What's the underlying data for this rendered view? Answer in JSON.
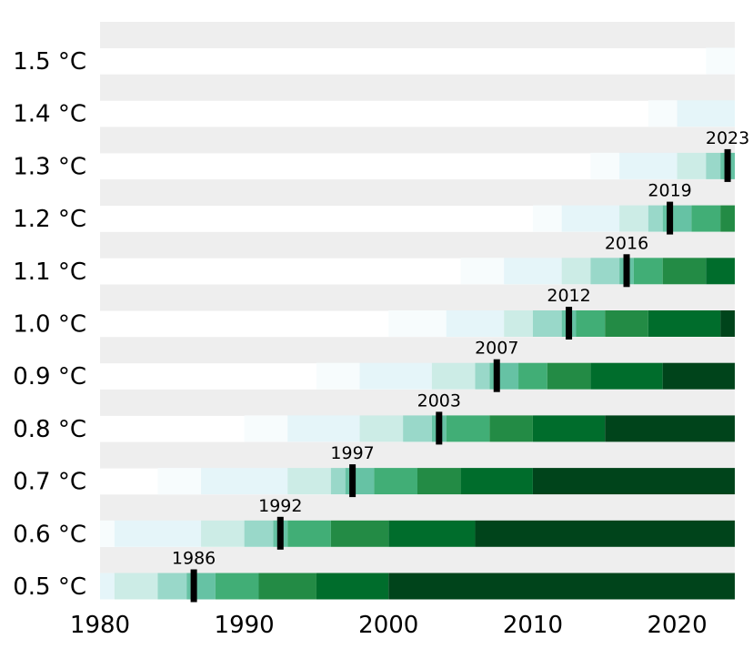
{
  "chart_data": {
    "type": "heatmap",
    "title": "",
    "xlabel": "",
    "ylabel": "",
    "xlim": [
      1980,
      2024
    ],
    "x_ticks": [
      1980,
      1990,
      2000,
      2010,
      2020
    ],
    "grid": false,
    "legend": "none",
    "color_scale": [
      "#f7fcfd",
      "#e5f5f9",
      "#ccece6",
      "#99d8c9",
      "#66c2a4",
      "#41ae76",
      "#238b45",
      "#006d2c",
      "#00441b"
    ],
    "row_background": "#eeeeee",
    "marker_color": "#000000",
    "rows": [
      {
        "label": "1.5 °C",
        "marker_year": null,
        "segments": [
          [
            2022,
            2024,
            0
          ]
        ]
      },
      {
        "label": "1.4 °C",
        "marker_year": null,
        "segments": [
          [
            2018,
            2020,
            0
          ],
          [
            2020,
            2024,
            1
          ]
        ]
      },
      {
        "label": "1.3 °C",
        "marker_year": 2023,
        "marker_label": "2023",
        "segments": [
          [
            2014,
            2016,
            0
          ],
          [
            2016,
            2020,
            1
          ],
          [
            2020,
            2022,
            2
          ],
          [
            2022,
            2023,
            3
          ],
          [
            2023,
            2024,
            4
          ]
        ]
      },
      {
        "label": "1.2 °C",
        "marker_year": 2019,
        "marker_label": "2019",
        "segments": [
          [
            2010,
            2012,
            0
          ],
          [
            2012,
            2016,
            1
          ],
          [
            2016,
            2018,
            2
          ],
          [
            2018,
            2019,
            3
          ],
          [
            2019,
            2021,
            4
          ],
          [
            2021,
            2023,
            5
          ],
          [
            2023,
            2024,
            6
          ]
        ]
      },
      {
        "label": "1.1 °C",
        "marker_year": 2016,
        "marker_label": "2016",
        "segments": [
          [
            2005,
            2008,
            0
          ],
          [
            2008,
            2012,
            1
          ],
          [
            2012,
            2014,
            2
          ],
          [
            2014,
            2016,
            3
          ],
          [
            2016,
            2017,
            4
          ],
          [
            2017,
            2019,
            5
          ],
          [
            2019,
            2022,
            6
          ],
          [
            2022,
            2024,
            7
          ]
        ]
      },
      {
        "label": "1.0 °C",
        "marker_year": 2012,
        "marker_label": "2012",
        "segments": [
          [
            2000,
            2004,
            0
          ],
          [
            2004,
            2008,
            1
          ],
          [
            2008,
            2010,
            2
          ],
          [
            2010,
            2012,
            3
          ],
          [
            2012,
            2013,
            4
          ],
          [
            2013,
            2015,
            5
          ],
          [
            2015,
            2018,
            6
          ],
          [
            2018,
            2023,
            7
          ],
          [
            2023,
            2024,
            8
          ]
        ]
      },
      {
        "label": "0.9 °C",
        "marker_year": 2007,
        "marker_label": "2007",
        "segments": [
          [
            1995,
            1998,
            0
          ],
          [
            1998,
            2003,
            1
          ],
          [
            2003,
            2006,
            2
          ],
          [
            2006,
            2007,
            3
          ],
          [
            2007,
            2009,
            4
          ],
          [
            2009,
            2011,
            5
          ],
          [
            2011,
            2014,
            6
          ],
          [
            2014,
            2019,
            7
          ],
          [
            2019,
            2024,
            8
          ]
        ]
      },
      {
        "label": "0.8 °C",
        "marker_year": 2003,
        "marker_label": "2003",
        "segments": [
          [
            1990,
            1993,
            0
          ],
          [
            1993,
            1998,
            1
          ],
          [
            1998,
            2001,
            2
          ],
          [
            2001,
            2003,
            3
          ],
          [
            2003,
            2004,
            4
          ],
          [
            2004,
            2007,
            5
          ],
          [
            2007,
            2010,
            6
          ],
          [
            2010,
            2015,
            7
          ],
          [
            2015,
            2024,
            8
          ]
        ]
      },
      {
        "label": "0.7 °C",
        "marker_year": 1997,
        "marker_label": "1997",
        "segments": [
          [
            1984,
            1987,
            0
          ],
          [
            1987,
            1993,
            1
          ],
          [
            1993,
            1996,
            2
          ],
          [
            1996,
            1997,
            3
          ],
          [
            1997,
            1999,
            4
          ],
          [
            1999,
            2002,
            5
          ],
          [
            2002,
            2005,
            6
          ],
          [
            2005,
            2010,
            7
          ],
          [
            2010,
            2024,
            8
          ]
        ]
      },
      {
        "label": "0.6 °C",
        "marker_year": 1992,
        "marker_label": "1992",
        "segments": [
          [
            1980,
            1981,
            0
          ],
          [
            1981,
            1987,
            1
          ],
          [
            1987,
            1990,
            2
          ],
          [
            1990,
            1992,
            3
          ],
          [
            1992,
            1993,
            4
          ],
          [
            1993,
            1996,
            5
          ],
          [
            1996,
            2000,
            6
          ],
          [
            2000,
            2006,
            7
          ],
          [
            2006,
            2024,
            8
          ]
        ]
      },
      {
        "label": "0.5 °C",
        "marker_year": 1986,
        "marker_label": "1986",
        "segments": [
          [
            1980,
            1981,
            1
          ],
          [
            1981,
            1984,
            2
          ],
          [
            1984,
            1986,
            3
          ],
          [
            1986,
            1988,
            4
          ],
          [
            1988,
            1991,
            5
          ],
          [
            1991,
            1995,
            6
          ],
          [
            1995,
            2000,
            7
          ],
          [
            2000,
            2024,
            8
          ]
        ]
      }
    ]
  }
}
